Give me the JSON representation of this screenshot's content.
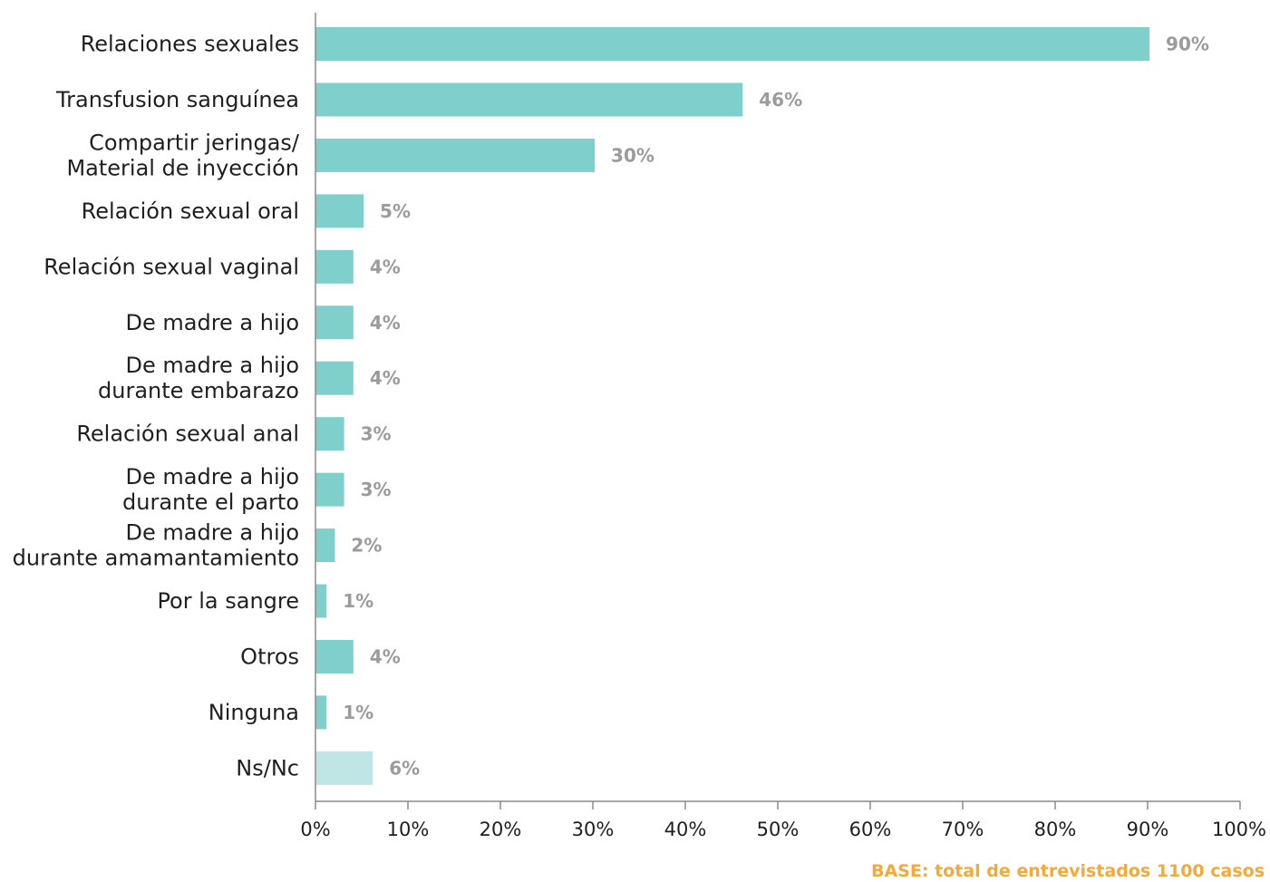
{
  "chart_data": {
    "type": "bar",
    "orientation": "horizontal",
    "categories": [
      "Relaciones sexuales",
      "Transfusion sanguínea",
      "Compartir jeringas/\nMaterial de inyección",
      "Relación sexual oral",
      "Relación sexual vaginal",
      "De madre a hijo",
      "De madre a hijo\ndurante embarazo",
      "Relación sexual anal",
      "De madre a hijo\ndurante el parto",
      "De madre a hijo\ndurante amamantamiento",
      "Por la sangre",
      "Otros",
      "Ninguna",
      "Ns/Nc"
    ],
    "values": [
      90.2,
      46.2,
      30.2,
      5.2,
      4.1,
      4.1,
      4.1,
      3.1,
      3.1,
      2.1,
      1.2,
      4.1,
      1.2,
      6.2
    ],
    "value_labels": [
      "90%",
      "46%",
      "30%",
      "5%",
      "4%",
      "4%",
      "4%",
      "3%",
      "3%",
      "2%",
      "1%",
      "4%",
      "1%",
      "6%"
    ],
    "bar_colors": [
      "#7fcfcd",
      "#7fcfcd",
      "#7fcfcd",
      "#7fcfcd",
      "#7fcfcd",
      "#7fcfcd",
      "#7fcfcd",
      "#7fcfcd",
      "#7fcfcd",
      "#7fcfcd",
      "#7fcfcd",
      "#7fcfcd",
      "#7fcfcd",
      "#bfe6e5"
    ],
    "x_ticks": [
      "0%",
      "10%",
      "20%",
      "30%",
      "40%",
      "50%",
      "60%",
      "70%",
      "80%",
      "90%",
      "100%"
    ],
    "xlim": [
      0,
      100
    ],
    "grid": false,
    "legend": "none",
    "title": "",
    "xlabel": "",
    "ylabel": "",
    "colors": {
      "bar": "#7fcfcd",
      "bar_light": "#bfe6e5",
      "value_label": "#9b9b9b",
      "axis": "#8a8a8a",
      "note": "#f4a93b"
    }
  },
  "footnote": "BASE: total de entrevistados 1100 casos"
}
